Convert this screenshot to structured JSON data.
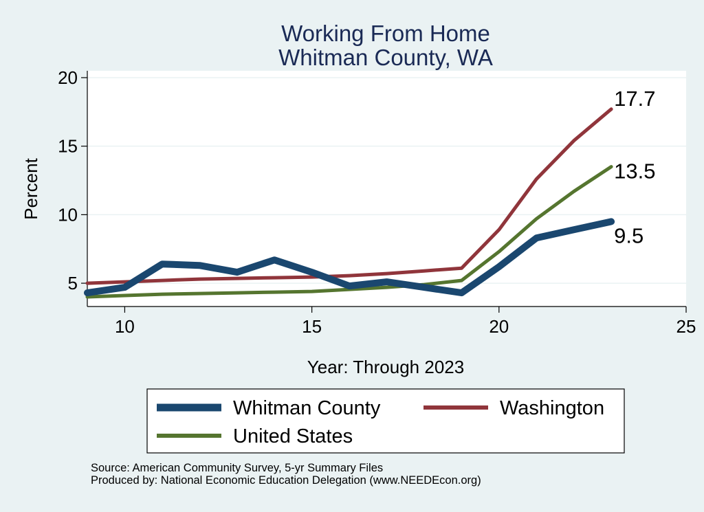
{
  "chart_data": {
    "type": "line",
    "title": "Working From Home",
    "subtitle": "Whitman County, WA",
    "xlabel": "Year: Through 2023",
    "ylabel": "Percent",
    "xlim": [
      9,
      25
    ],
    "ylim": [
      3.3,
      20.5
    ],
    "xticks": [
      10,
      15,
      20,
      25
    ],
    "yticks": [
      5,
      10,
      15,
      20
    ],
    "grid": true,
    "legend_position": "bottom",
    "x": [
      9,
      10,
      11,
      12,
      13,
      14,
      15,
      16,
      17,
      18,
      19,
      20,
      21,
      22,
      23
    ],
    "series": [
      {
        "name": "Whitman County",
        "color": "#1a476f",
        "values": [
          4.3,
          4.7,
          6.4,
          6.3,
          5.8,
          6.7,
          5.8,
          4.8,
          5.1,
          4.7,
          4.3,
          6.2,
          8.3,
          8.9,
          9.5
        ],
        "end_label": "9.5"
      },
      {
        "name": "Washington",
        "color": "#90353b",
        "values": [
          5.0,
          5.1,
          5.2,
          5.3,
          5.35,
          5.4,
          5.45,
          5.55,
          5.7,
          5.9,
          6.1,
          8.9,
          12.6,
          15.4,
          17.7
        ],
        "end_label": "17.7"
      },
      {
        "name": "United States",
        "color": "#55752f",
        "values": [
          4.0,
          4.1,
          4.2,
          4.25,
          4.3,
          4.35,
          4.4,
          4.55,
          4.7,
          4.9,
          5.2,
          7.3,
          9.7,
          11.7,
          13.5
        ],
        "end_label": "13.5"
      }
    ]
  },
  "footer": {
    "source": "Source: American Community Survey, 5-yr Summary Files",
    "produced_by": "Produced by: National Economic Education Delegation (www.NEEDEcon.org)"
  }
}
